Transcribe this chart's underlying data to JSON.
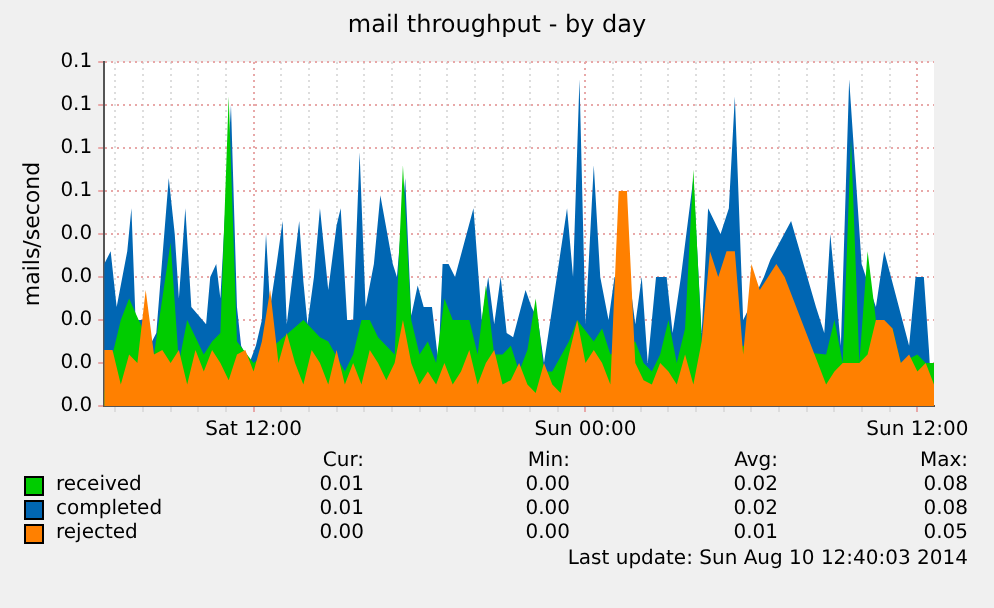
{
  "chart_data": {
    "type": "area",
    "title": "mail throughput - by day",
    "ylabel": "mails/second",
    "x": [
      "2014-08-09T06:36",
      "2014-08-09T06:54",
      "2014-08-09T07:12",
      "2014-08-09T07:30",
      "2014-08-09T07:48",
      "2014-08-09T08:06",
      "2014-08-09T08:24",
      "2014-08-09T08:42",
      "2014-08-09T09:00",
      "2014-08-09T09:18",
      "2014-08-09T09:36",
      "2014-08-09T09:54",
      "2014-08-09T10:12",
      "2014-08-09T10:30",
      "2014-08-09T10:48",
      "2014-08-09T11:06",
      "2014-08-09T11:24",
      "2014-08-09T11:42",
      "2014-08-09T12:00",
      "2014-08-09T12:18",
      "2014-08-09T12:36",
      "2014-08-09T12:54",
      "2014-08-09T13:12",
      "2014-08-09T13:30",
      "2014-08-09T13:48",
      "2014-08-09T14:06",
      "2014-08-09T14:24",
      "2014-08-09T14:42",
      "2014-08-09T15:00",
      "2014-08-09T15:18",
      "2014-08-09T15:36",
      "2014-08-09T15:54",
      "2014-08-09T16:12",
      "2014-08-09T16:30",
      "2014-08-09T16:48",
      "2014-08-09T17:06",
      "2014-08-09T17:24",
      "2014-08-09T17:42",
      "2014-08-09T18:00",
      "2014-08-09T18:18",
      "2014-08-09T18:36",
      "2014-08-09T18:54",
      "2014-08-09T19:12",
      "2014-08-09T19:30",
      "2014-08-09T19:48",
      "2014-08-09T20:06",
      "2014-08-09T20:24",
      "2014-08-09T20:42",
      "2014-08-09T21:00",
      "2014-08-09T21:18",
      "2014-08-09T21:36",
      "2014-08-09T21:54",
      "2014-08-09T22:12",
      "2014-08-09T22:30",
      "2014-08-09T22:48",
      "2014-08-09T23:06",
      "2014-08-09T23:24",
      "2014-08-09T23:42",
      "2014-08-10T00:00",
      "2014-08-10T00:18",
      "2014-08-10T00:36",
      "2014-08-10T00:54",
      "2014-08-10T01:12",
      "2014-08-10T01:30",
      "2014-08-10T01:48",
      "2014-08-10T02:06",
      "2014-08-10T02:24",
      "2014-08-10T02:42",
      "2014-08-10T03:00",
      "2014-08-10T03:18",
      "2014-08-10T03:36",
      "2014-08-10T03:54",
      "2014-08-10T04:12",
      "2014-08-10T04:30",
      "2014-08-10T04:48",
      "2014-08-10T05:06",
      "2014-08-10T05:24",
      "2014-08-10T05:42",
      "2014-08-10T06:00",
      "2014-08-10T06:18",
      "2014-08-10T06:36",
      "2014-08-10T06:54",
      "2014-08-10T07:12",
      "2014-08-10T07:30",
      "2014-08-10T07:48",
      "2014-08-10T08:06",
      "2014-08-10T08:24",
      "2014-08-10T08:42",
      "2014-08-10T09:00",
      "2014-08-10T09:18",
      "2014-08-10T09:36",
      "2014-08-10T09:54",
      "2014-08-10T10:12",
      "2014-08-10T10:30",
      "2014-08-10T10:48",
      "2014-08-10T11:06",
      "2014-08-10T11:24",
      "2014-08-10T11:42",
      "2014-08-10T12:00",
      "2014-08-10T12:18",
      "2014-08-10T12:36"
    ],
    "series": [
      {
        "name": "received",
        "color": "#00cc00",
        "values": [
          0.003,
          0.012,
          0.02,
          0.025,
          null,
          null,
          0.012,
          null,
          0.038,
          0.01,
          0.02,
          null,
          0.012,
          0.015,
          0.017,
          0.072,
          0.015,
          null,
          0.01,
          null,
          null,
          null,
          null,
          null,
          0.02,
          0.018,
          0.016,
          0.015,
          null,
          0.008,
          0.012,
          0.02,
          0.02,
          0.016,
          null,
          0.012,
          0.056,
          0.02,
          0.012,
          0.015,
          0.01,
          0.025,
          0.02,
          null,
          0.02,
          0.012,
          0.028,
          0.012,
          0.012,
          0.014,
          0.008,
          0.013,
          0.025,
          0.008,
          0.008,
          null,
          0.015,
          0.02,
          null,
          0.015,
          0.018,
          0.012,
          null,
          null,
          0.015,
          0.01,
          0.008,
          0.012,
          0.02,
          0.01,
          0.018,
          0.055,
          0.015,
          null,
          null,
          null,
          null,
          null,
          null,
          null,
          null,
          null,
          null,
          null,
          null,
          null,
          null,
          0.012,
          0.02,
          0.01,
          0.062,
          0.01,
          0.036,
          0.02,
          null,
          0.018,
          0.01,
          null,
          0.012,
          0.01,
          0.01
        ]
      },
      {
        "name": "completed",
        "color": "#0066b3",
        "x": [
          "2014-08-09T06:36",
          "2014-08-09T06:50",
          "2014-08-09T07:03",
          "2014-08-09T07:17",
          "2014-08-09T07:26",
          "2014-08-09T07:35",
          "2014-08-09T07:44",
          "2014-08-09T08:02",
          "2014-08-09T08:15",
          "2014-08-09T08:29",
          "2014-08-09T08:42",
          "2014-08-09T08:56",
          "2014-08-09T09:09",
          "2014-08-09T09:18",
          "2014-08-09T09:32",
          "2014-08-09T09:45",
          "2014-08-09T10:03",
          "2014-08-09T10:17",
          "2014-08-09T10:26",
          "2014-08-09T10:39",
          "2014-08-09T10:48",
          "2014-08-09T11:02",
          "2014-08-09T11:11",
          "2014-08-09T11:24",
          "2014-08-09T11:33",
          "2014-08-09T11:51",
          "2014-08-09T12:05",
          "2014-08-09T12:18",
          "2014-08-09T12:27",
          "2014-08-09T12:36",
          "2014-08-09T12:50",
          "2014-08-09T13:03",
          "2014-08-09T13:12",
          "2014-08-09T13:26",
          "2014-08-09T13:39",
          "2014-08-09T13:48",
          "2014-08-09T13:57",
          "2014-08-09T14:11",
          "2014-08-09T14:24",
          "2014-08-09T14:42",
          "2014-08-09T15:00",
          "2014-08-09T15:09",
          "2014-08-09T15:23",
          "2014-08-09T15:36",
          "2014-08-09T15:50",
          "2014-08-09T16:03",
          "2014-08-09T16:12",
          "2014-08-09T16:21",
          "2014-08-09T16:35",
          "2014-08-09T16:48",
          "2014-08-09T17:02",
          "2014-08-09T17:11",
          "2014-08-09T17:29",
          "2014-08-09T17:42",
          "2014-08-09T17:56",
          "2014-08-09T18:09",
          "2014-08-09T18:27",
          "2014-08-09T18:41",
          "2014-08-09T18:50",
          "2014-08-09T19:03",
          "2014-08-09T19:17",
          "2014-08-09T19:30",
          "2014-08-09T19:44",
          "2014-08-09T19:57",
          "2014-08-09T20:15",
          "2014-08-09T20:29",
          "2014-08-09T20:42",
          "2014-08-09T20:56",
          "2014-08-09T21:09",
          "2014-08-09T21:23",
          "2014-08-09T21:36",
          "2014-08-09T21:50",
          "2014-08-09T22:03",
          "2014-08-09T22:17",
          "2014-08-09T22:30",
          "2014-08-09T22:48",
          "2014-08-09T23:06",
          "2014-08-09T23:20",
          "2014-08-09T23:33",
          "2014-08-09T23:47",
          "2014-08-10T00:00",
          "2014-08-10T00:18",
          "2014-08-10T00:32",
          "2014-08-10T00:50",
          "2014-08-10T01:03",
          "2014-08-10T01:21",
          "2014-08-10T01:35",
          "2014-08-10T01:48",
          "2014-08-10T02:02",
          "2014-08-10T02:15",
          "2014-08-10T02:33",
          "2014-08-10T02:47",
          "2014-08-10T02:56",
          "2014-08-10T03:09",
          "2014-08-10T03:27",
          "2014-08-10T03:41",
          "2014-08-10T03:54",
          "2014-08-10T04:12",
          "2014-08-10T04:26",
          "2014-08-10T04:39",
          "2014-08-10T04:53",
          "2014-08-10T05:11",
          "2014-08-10T05:24",
          "2014-08-10T05:42",
          "2014-08-10T05:56",
          "2014-08-10T06:09",
          "2014-08-10T06:27",
          "2014-08-10T06:41",
          "2014-08-10T06:54",
          "2014-08-10T07:12",
          "2014-08-10T07:26",
          "2014-08-10T07:44",
          "2014-08-10T08:02",
          "2014-08-10T08:20",
          "2014-08-10T08:38",
          "2014-08-10T08:51",
          "2014-08-10T09:14",
          "2014-08-10T09:32",
          "2014-08-10T09:45",
          "2014-08-10T09:59",
          "2014-08-10T10:17",
          "2014-08-10T10:30",
          "2014-08-10T10:48",
          "2014-08-10T11:02",
          "2014-08-10T11:24",
          "2014-08-10T11:42",
          "2014-08-10T11:56",
          "2014-08-10T12:14",
          "2014-08-10T12:27"
        ],
        "values": [
          0.033,
          0.036,
          0.023,
          null,
          0.036,
          0.046,
          0.02,
          0.02,
          0.014,
          0.017,
          null,
          0.053,
          0.04,
          0.025,
          0.046,
          0.023,
          null,
          0.019,
          0.03,
          0.033,
          0.025,
          null,
          0.07,
          0.023,
          0.014,
          0.01,
          0.014,
          0.02,
          0.04,
          0.023,
          0.033,
          0.043,
          0.019,
          null,
          0.043,
          0.029,
          0.019,
          0.03,
          0.046,
          0.027,
          0.042,
          0.046,
          0.02,
          0.02,
          0.059,
          0.023,
          null,
          0.033,
          0.049,
          null,
          0.033,
          0.03,
          0.053,
          0.021,
          0.028,
          0.023,
          0.023,
          0.01,
          0.033,
          0.033,
          0.03,
          null,
          null,
          0.046,
          0.02,
          0.03,
          0.019,
          0.03,
          0.017,
          0.016,
          null,
          0.027,
          0.023,
          0.02,
          0.01,
          null,
          null,
          0.046,
          0.03,
          0.076,
          0.019,
          0.056,
          0.03,
          0.02,
          0.03,
          null,
          0.03,
          0.019,
          0.03,
          0.01,
          0.03,
          null,
          0.03,
          0.017,
          0.03,
          null,
          0.053,
          0.017,
          0.046,
          null,
          0.04,
          0.046,
          0.072,
          0.02,
          0.023,
          null,
          0.03,
          0.034,
          null,
          null,
          0.043,
          null,
          null,
          0.023,
          0.017,
          0.04,
          0.014,
          0.076,
          null,
          0.033,
          null,
          0.023,
          0.036,
          null,
          null,
          0.014,
          0.03,
          0.03,
          0.01
        ]
      },
      {
        "name": "rejected",
        "color": "#ff8000",
        "values": [
          0.013,
          0.013,
          0.005,
          0.012,
          0.01,
          0.027,
          0.012,
          0.013,
          0.01,
          0.013,
          0.005,
          0.013,
          0.008,
          0.013,
          0.01,
          0.006,
          0.012,
          0.013,
          0.008,
          0.015,
          0.027,
          0.01,
          0.017,
          0.01,
          0.005,
          0.013,
          0.01,
          0.005,
          0.013,
          0.005,
          0.01,
          0.005,
          0.013,
          0.01,
          0.006,
          0.01,
          0.02,
          0.01,
          0.005,
          0.008,
          0.005,
          0.01,
          0.005,
          0.008,
          0.013,
          0.005,
          0.01,
          0.013,
          0.005,
          0.006,
          0.01,
          0.005,
          0.003,
          0.01,
          0.005,
          0.003,
          0.012,
          0.02,
          0.01,
          0.013,
          0.01,
          0.005,
          0.05,
          0.05,
          0.01,
          0.006,
          0.005,
          0.01,
          0.008,
          0.005,
          0.012,
          0.005,
          0.015,
          0.036,
          0.03,
          0.036,
          0.036,
          0.012,
          0.033,
          0.027,
          0.03,
          0.033,
          0.03,
          0.025,
          0.02,
          0.015,
          0.01,
          0.005,
          0.008,
          0.01,
          0.01,
          0.01,
          0.012,
          0.02,
          0.02,
          0.018,
          0.01,
          0.012,
          0.008,
          0.01,
          0.005
        ]
      }
    ],
    "xlim": [
      "2014-08-09T06:36",
      "2014-08-10T12:36"
    ],
    "xticks": [
      {
        "value": "2014-08-09T07:00",
        "label": null
      },
      {
        "value": "2014-08-09T08:00",
        "label": null
      },
      {
        "value": "2014-08-09T09:00",
        "label": null
      },
      {
        "value": "2014-08-09T10:00",
        "label": null
      },
      {
        "value": "2014-08-09T11:00",
        "label": null
      },
      {
        "value": "2014-08-09T12:00",
        "label": "Sat 12:00"
      },
      {
        "value": "2014-08-09T13:00",
        "label": null
      },
      {
        "value": "2014-08-09T14:00",
        "label": null
      },
      {
        "value": "2014-08-09T15:00",
        "label": null
      },
      {
        "value": "2014-08-09T16:00",
        "label": null
      },
      {
        "value": "2014-08-09T17:00",
        "label": null
      },
      {
        "value": "2014-08-09T18:00",
        "label": null
      },
      {
        "value": "2014-08-09T19:00",
        "label": null
      },
      {
        "value": "2014-08-09T20:00",
        "label": null
      },
      {
        "value": "2014-08-09T21:00",
        "label": null
      },
      {
        "value": "2014-08-09T22:00",
        "label": null
      },
      {
        "value": "2014-08-09T23:00",
        "label": null
      },
      {
        "value": "2014-08-10T00:00",
        "label": "Sun 00:00"
      },
      {
        "value": "2014-08-10T01:00",
        "label": null
      },
      {
        "value": "2014-08-10T02:00",
        "label": null
      },
      {
        "value": "2014-08-10T03:00",
        "label": null
      },
      {
        "value": "2014-08-10T04:00",
        "label": null
      },
      {
        "value": "2014-08-10T05:00",
        "label": null
      },
      {
        "value": "2014-08-10T06:00",
        "label": null
      },
      {
        "value": "2014-08-10T07:00",
        "label": null
      },
      {
        "value": "2014-08-10T08:00",
        "label": null
      },
      {
        "value": "2014-08-10T09:00",
        "label": null
      },
      {
        "value": "2014-08-10T10:00",
        "label": null
      },
      {
        "value": "2014-08-10T11:00",
        "label": null
      },
      {
        "value": "2014-08-10T12:00",
        "label": "Sun 12:00"
      }
    ],
    "ylim": [
      0,
      0.08
    ],
    "yticks": [
      {
        "value": 0,
        "label": "0.0"
      },
      {
        "value": 0.01,
        "label": "0.0"
      },
      {
        "value": 0.02,
        "label": "0.0"
      },
      {
        "value": 0.03,
        "label": "0.0"
      },
      {
        "value": 0.04,
        "label": "0.0"
      },
      {
        "value": 0.05,
        "label": "0.1"
      },
      {
        "value": 0.06,
        "label": "0.1"
      },
      {
        "value": 0.07,
        "label": "0.1"
      },
      {
        "value": 0.08,
        "label": "0.1"
      }
    ],
    "grid": true,
    "legend": "bottom",
    "marker": "none",
    "annotations": [
      "Cur:",
      "Min:",
      "Avg:",
      "Max:",
      "0.01",
      "0.00",
      "0.02",
      "0.08",
      "0.01",
      "0.00",
      "0.02",
      "0.08",
      "0.00",
      "0.00",
      "0.01",
      "0.05",
      "Last update: Sun Aug 10 12:40:03 2014"
    ]
  }
}
